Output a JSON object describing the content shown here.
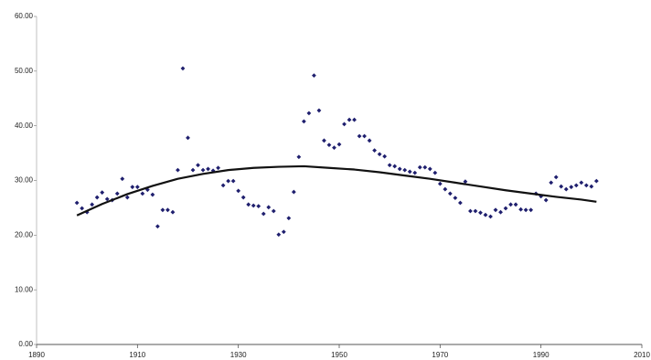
{
  "chart_data": {
    "type": "scatter",
    "xlim": [
      1890,
      2010
    ],
    "xticks": [
      1890,
      1910,
      1930,
      1950,
      1970,
      1990,
      2010
    ],
    "ylim": [
      0,
      60
    ],
    "yticks": [
      {
        "value": 0,
        "label": "0.00"
      },
      {
        "value": 10,
        "label": "10.00"
      },
      {
        "value": 20,
        "label": "20.00"
      },
      {
        "value": 30,
        "label": "30.00"
      },
      {
        "value": 40,
        "label": "40.00"
      },
      {
        "value": 50,
        "label": "50.00"
      },
      {
        "value": 60,
        "label": "60.00"
      }
    ],
    "series": [
      {
        "type": "scatter",
        "color": "#1f1f6e",
        "x": [
          1898,
          1899,
          1900,
          1901,
          1902,
          1903,
          1904,
          1905,
          1906,
          1907,
          1908,
          1909,
          1910,
          1911,
          1912,
          1913,
          1914,
          1915,
          1916,
          1917,
          1918,
          1919,
          1920,
          1921,
          1922,
          1923,
          1924,
          1925,
          1926,
          1927,
          1928,
          1929,
          1930,
          1931,
          1932,
          1933,
          1934,
          1935,
          1936,
          1937,
          1938,
          1939,
          1940,
          1941,
          1942,
          1943,
          1944,
          1945,
          1946,
          1947,
          1948,
          1949,
          1950,
          1951,
          1952,
          1953,
          1954,
          1955,
          1956,
          1957,
          1958,
          1959,
          1960,
          1961,
          1962,
          1963,
          1964,
          1965,
          1966,
          1967,
          1968,
          1969,
          1970,
          1971,
          1972,
          1973,
          1974,
          1975,
          1976,
          1977,
          1978,
          1979,
          1980,
          1981,
          1982,
          1983,
          1984,
          1985,
          1986,
          1987,
          1988,
          1989,
          1990,
          1991,
          1992,
          1993,
          1994,
          1995,
          1996,
          1997,
          1998,
          1999,
          2000,
          2001
        ],
        "values": [
          25.9,
          24.9,
          24.2,
          25.6,
          26.9,
          27.8,
          26.6,
          26.4,
          27.6,
          30.3,
          26.9,
          28.8,
          28.8,
          27.6,
          28.3,
          27.4,
          21.6,
          24.6,
          24.6,
          24.2,
          31.9,
          50.5,
          37.8,
          31.9,
          32.8,
          31.9,
          32.1,
          31.8,
          32.3,
          29.1,
          29.9,
          29.9,
          28.1,
          26.9,
          25.6,
          25.4,
          25.3,
          23.9,
          25.1,
          24.4,
          20.1,
          20.6,
          23.1,
          27.9,
          34.3,
          40.8,
          42.3,
          49.2,
          42.8,
          37.3,
          36.5,
          36.0,
          36.6,
          40.3,
          41.1,
          41.1,
          38.1,
          38.1,
          37.3,
          35.5,
          34.8,
          34.4,
          32.8,
          32.6,
          32.1,
          31.9,
          31.6,
          31.4,
          32.4,
          32.4,
          32.1,
          31.4,
          29.4,
          28.4,
          27.6,
          26.8,
          25.9,
          29.8,
          24.4,
          24.4,
          24.1,
          23.7,
          23.4,
          24.6,
          24.2,
          24.9,
          25.6,
          25.6,
          24.7,
          24.6,
          24.6,
          27.6,
          27.1,
          26.4,
          29.6,
          30.6,
          28.9,
          28.4,
          28.8,
          29.1,
          29.6,
          29.1,
          28.9,
          29.9
        ]
      },
      {
        "type": "line",
        "color": "#111111",
        "x": [
          1898,
          1903,
          1908,
          1913,
          1918,
          1923,
          1928,
          1933,
          1938,
          1943,
          1948,
          1953,
          1958,
          1963,
          1968,
          1973,
          1978,
          1983,
          1988,
          1993,
          1998,
          2001
        ],
        "values": [
          23.6,
          25.7,
          27.5,
          29.0,
          30.3,
          31.2,
          31.9,
          32.3,
          32.5,
          32.6,
          32.3,
          32.0,
          31.5,
          30.9,
          30.3,
          29.6,
          28.9,
          28.2,
          27.6,
          27.0,
          26.5,
          26.1
        ]
      }
    ]
  }
}
